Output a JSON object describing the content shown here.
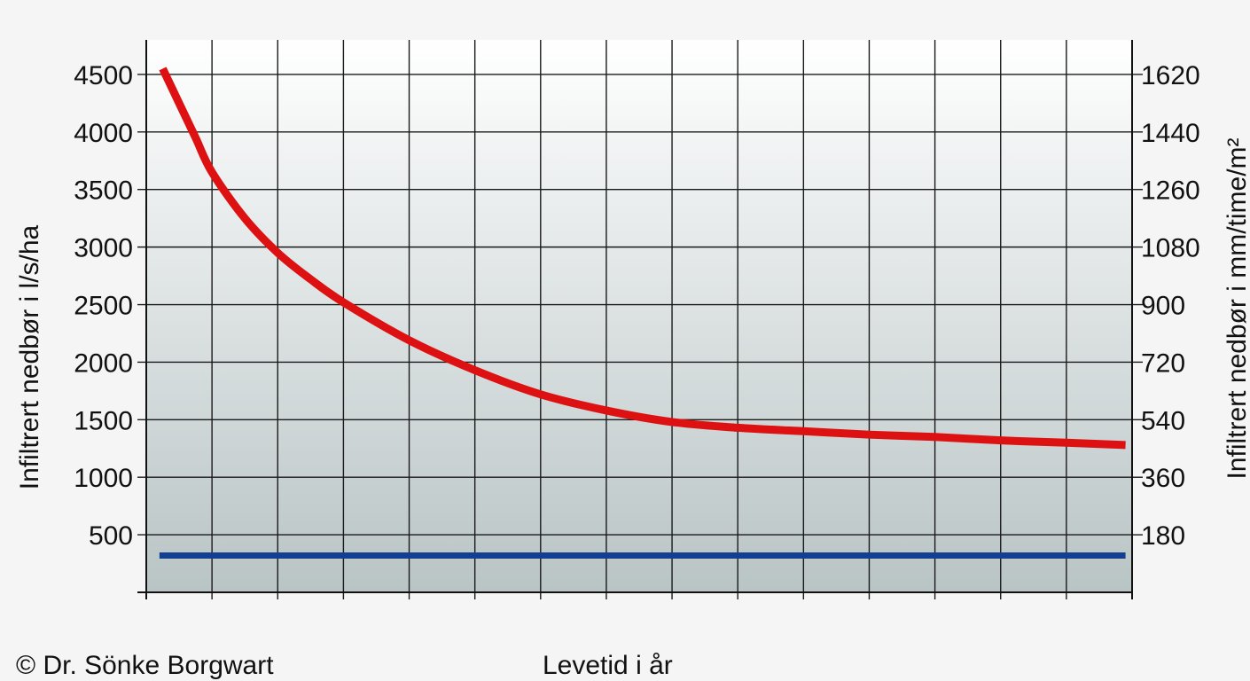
{
  "chart_data": {
    "type": "line",
    "title": "",
    "xlabel": "Levetid i år",
    "ylabel": "Infiltrert nedbør i l/s/ha",
    "y2label": "Infiltrert nedbør i mm/time/m²",
    "credit": "© Dr. Sönke Borgwart",
    "ylim": [
      0,
      4800
    ],
    "yticks": [
      500,
      1000,
      1500,
      2000,
      2500,
      3000,
      3500,
      4000,
      4500
    ],
    "y2lim": [
      0,
      1728
    ],
    "y2ticks": [
      180,
      360,
      540,
      720,
      900,
      1080,
      1260,
      1440,
      1620
    ],
    "xlim": [
      0,
      15
    ],
    "xgrid_count": 15,
    "grid": true,
    "series": [
      {
        "name": "",
        "color": "#dd1111",
        "x": [
          0.25,
          0.5,
          0.75,
          1,
          1.5,
          2,
          2.5,
          3,
          4,
          5,
          6,
          7,
          8,
          9,
          10,
          11,
          12,
          13,
          14,
          14.9
        ],
        "y": [
          4550,
          4250,
          3950,
          3650,
          3250,
          2950,
          2720,
          2520,
          2190,
          1930,
          1720,
          1580,
          1480,
          1430,
          1400,
          1370,
          1350,
          1320,
          1300,
          1280
        ]
      },
      {
        "name": "",
        "color": "#123f91",
        "x": [
          0.2,
          14.9
        ],
        "y": [
          320,
          320
        ]
      }
    ]
  }
}
